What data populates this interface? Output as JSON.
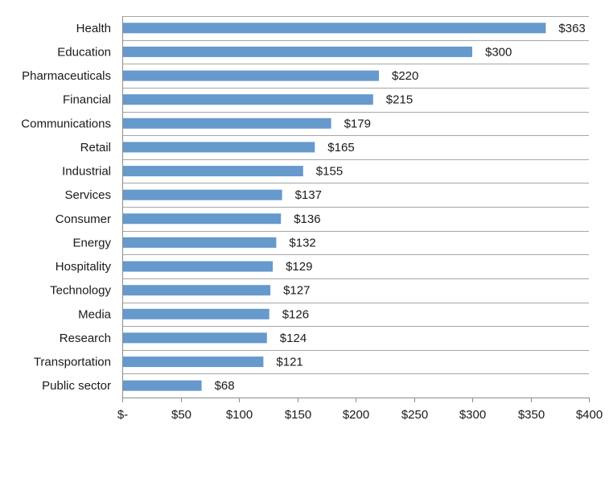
{
  "chart_data": {
    "type": "bar",
    "orientation": "horizontal",
    "title": "",
    "xlabel": "",
    "ylabel": "",
    "categories": [
      "Health",
      "Education",
      "Pharmaceuticals",
      "Financial",
      "Communications",
      "Retail",
      "Industrial",
      "Services",
      "Consumer",
      "Energy",
      "Hospitality",
      "Technology",
      "Media",
      "Research",
      "Transportation",
      "Public sector"
    ],
    "values": [
      363,
      300,
      220,
      215,
      179,
      165,
      155,
      137,
      136,
      132,
      129,
      127,
      126,
      124,
      121,
      68
    ],
    "value_labels": [
      "$363",
      "$300",
      "$220",
      "$215",
      "$179",
      "$165",
      "$155",
      "$137",
      "$136",
      "$132",
      "$129",
      "$127",
      "$126",
      "$124",
      "$121",
      "$68"
    ],
    "xlim": [
      0,
      400
    ],
    "x_ticks": [
      0,
      50,
      100,
      150,
      200,
      250,
      300,
      350,
      400
    ],
    "x_tick_labels": [
      "$-",
      "$50",
      "$100",
      "$150",
      "$200",
      "$250",
      "$300",
      "$350",
      "$400"
    ],
    "grid": "horizontal-lines",
    "legend": "none",
    "bar_color": "#6699CC",
    "grid_color": "#A6A6A6"
  }
}
